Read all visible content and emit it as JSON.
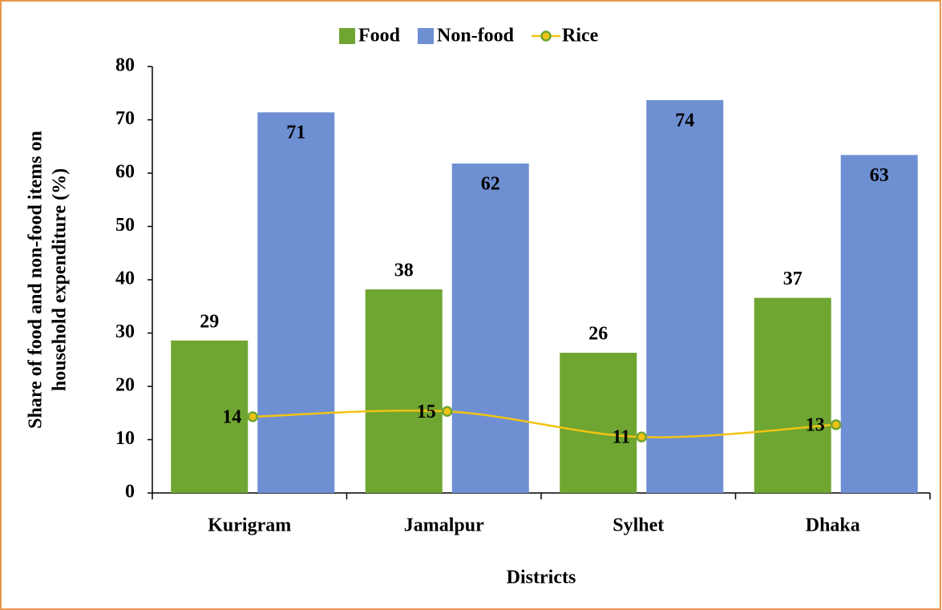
{
  "chart_data": {
    "type": "bar",
    "ylabel": [
      "Share of food and non-food items on",
      "household expenditure (%)"
    ],
    "xlabel": "Districts",
    "categories": [
      "Kurigram",
      "Jamalpur",
      "Sylhet",
      "Dhaka"
    ],
    "series": [
      {
        "name": "Food",
        "type": "bar",
        "color": "#6fa531",
        "values": [
          28.6,
          38.2,
          26.3,
          36.6
        ],
        "value_labels": [
          "29",
          "38",
          "26",
          "37"
        ]
      },
      {
        "name": "Non-food",
        "type": "bar",
        "color": "#6e8fd2",
        "values": [
          71.4,
          61.8,
          73.7,
          63.4
        ],
        "value_labels": [
          "71",
          "62",
          "74",
          "63"
        ]
      },
      {
        "name": "Rice",
        "type": "line",
        "color": "#f2c314",
        "marker_edge": "#6fa531",
        "values": [
          14.3,
          15.3,
          10.5,
          12.8
        ],
        "value_labels": [
          "14",
          "15",
          "11",
          "13"
        ]
      }
    ],
    "ylim": [
      0,
      80
    ],
    "yticks": [
      0,
      10,
      20,
      30,
      40,
      50,
      60,
      70,
      80
    ],
    "grid": false,
    "legend": "top"
  }
}
